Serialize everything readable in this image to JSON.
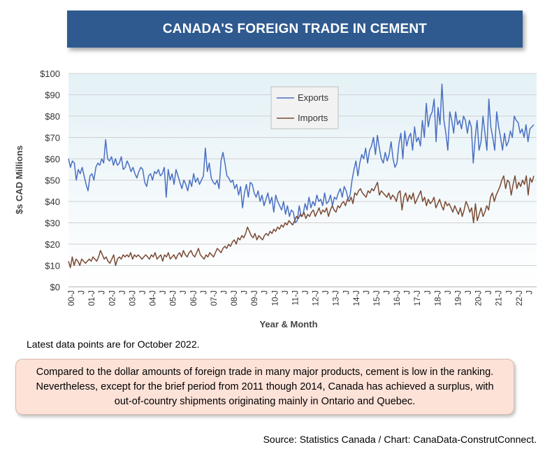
{
  "chart_data": {
    "type": "line",
    "title": "CANADA'S FOREIGN TRADE IN CEMENT",
    "xlabel": "Year & Month",
    "ylabel": "$s CAD Millions",
    "ylim": [
      0,
      100
    ],
    "yticks": [
      "$0",
      "$10",
      "$20",
      "$30",
      "$40",
      "$50",
      "$60",
      "$70",
      "$80",
      "$90",
      "$100"
    ],
    "xticks": [
      "00-J",
      "J",
      "01-J",
      "J",
      "02-J",
      "J",
      "03-J",
      "J",
      "04-J",
      "J",
      "05-J",
      "J",
      "06-J",
      "J",
      "07-J",
      "J",
      "08-J",
      "J",
      "09-J",
      "J",
      "10-J",
      "J",
      "11-J",
      "J",
      "12-J",
      "J",
      "13-J",
      "J",
      "14-J",
      "J",
      "15-J",
      "J",
      "16-J",
      "J",
      "17-J",
      "J",
      "18-J",
      "J",
      "19-J",
      "J",
      "20-J",
      "J",
      "21-J",
      "J",
      "22-J",
      "J"
    ],
    "x_start": "2000-01",
    "x_end": "2022-10",
    "legend": {
      "position": "top-center"
    },
    "series": [
      {
        "name": "Exports",
        "color": "#4a6fc2",
        "values": [
          60,
          56,
          59,
          58,
          50,
          55,
          53,
          56,
          52,
          48,
          45,
          52,
          53,
          50,
          56,
          58,
          57,
          60,
          58,
          69,
          60,
          59,
          61,
          57,
          60,
          57,
          58,
          61,
          55,
          56,
          59,
          57,
          54,
          56,
          53,
          51,
          54,
          56,
          55,
          49,
          47,
          52,
          53,
          50,
          54,
          53,
          55,
          52,
          53,
          56,
          42,
          55,
          50,
          53,
          48,
          55,
          52,
          49,
          46,
          50,
          48,
          45,
          50,
          47,
          53,
          49,
          51,
          48,
          50,
          52,
          65,
          54,
          58,
          51,
          49,
          48,
          50,
          46,
          59,
          63,
          58,
          52,
          51,
          49,
          50,
          46,
          48,
          43,
          47,
          37,
          44,
          48,
          42,
          49,
          48,
          44,
          42,
          45,
          40,
          43,
          38,
          41,
          44,
          39,
          42,
          35,
          43,
          40,
          38,
          36,
          40,
          34,
          38,
          33,
          36,
          35,
          30,
          31,
          38,
          33,
          34,
          39,
          36,
          42,
          37,
          40,
          38,
          43,
          40,
          41,
          38,
          44,
          39,
          40,
          43,
          38,
          42,
          41,
          44,
          46,
          42,
          47,
          45,
          41,
          43,
          50,
          55,
          59,
          52,
          58,
          62,
          60,
          65,
          58,
          64,
          66,
          70,
          62,
          71,
          65,
          60,
          58,
          63,
          59,
          62,
          68,
          60,
          56,
          58,
          67,
          72,
          60,
          73,
          66,
          70,
          72,
          64,
          75,
          68,
          70,
          66,
          78,
          70,
          86,
          75,
          80,
          82,
          88,
          68,
          84,
          76,
          95,
          78,
          72,
          64,
          82,
          78,
          72,
          82,
          76,
          78,
          74,
          80,
          78,
          72,
          78,
          75,
          58,
          70,
          78,
          64,
          68,
          80,
          72,
          64,
          88,
          75,
          70,
          64,
          82,
          75,
          70,
          64,
          72,
          66,
          68,
          73,
          70,
          80,
          78,
          77,
          72,
          74,
          70,
          76,
          68,
          74,
          75,
          76
        ]
      },
      {
        "name": "Imports",
        "color": "#7a4a34",
        "values": [
          12,
          9,
          14,
          10,
          13,
          12,
          10,
          13,
          12,
          11,
          12,
          13,
          12,
          14,
          13,
          12,
          14,
          17,
          15,
          13,
          14,
          12,
          11,
          13,
          15,
          10,
          13,
          14,
          13,
          15,
          14,
          15,
          14,
          16,
          13,
          15,
          14,
          15,
          14,
          13,
          14,
          15,
          14,
          13,
          15,
          14,
          16,
          13,
          14,
          15,
          12,
          15,
          14,
          16,
          13,
          14,
          15,
          13,
          15,
          16,
          14,
          17,
          15,
          14,
          16,
          17,
          15,
          14,
          16,
          18,
          15,
          14,
          13,
          15,
          14,
          16,
          15,
          14,
          16,
          18,
          17,
          16,
          18,
          19,
          18,
          20,
          19,
          21,
          22,
          20,
          23,
          22,
          24,
          23,
          25,
          28,
          26,
          24,
          23,
          25,
          22,
          24,
          23,
          22,
          24,
          25,
          24,
          26,
          25,
          27,
          26,
          28,
          27,
          29,
          28,
          30,
          29,
          31,
          30,
          29,
          31,
          33,
          32,
          34,
          33,
          35,
          32,
          34,
          33,
          35,
          36,
          33,
          35,
          37,
          34,
          36,
          35,
          37,
          33,
          36,
          38,
          36,
          35,
          38,
          37,
          39,
          40,
          38,
          41,
          40,
          42,
          39,
          44,
          43,
          45,
          46,
          44,
          43,
          42,
          45,
          44,
          46,
          45,
          47,
          49,
          43,
          45,
          44,
          43,
          42,
          44,
          41,
          43,
          42,
          40,
          44,
          45,
          36,
          42,
          44,
          40,
          43,
          41,
          44,
          39,
          41,
          43,
          45,
          40,
          42,
          38,
          41,
          39,
          40,
          42,
          37,
          39,
          41,
          38,
          36,
          40,
          38,
          39,
          37,
          35,
          38,
          36,
          34,
          37,
          33,
          36,
          40,
          38,
          35,
          37,
          30,
          39,
          31,
          34,
          37,
          33,
          35,
          38,
          36,
          42,
          44,
          40,
          43,
          45,
          47,
          50,
          52,
          46,
          50,
          49,
          43,
          48,
          52,
          46,
          49,
          47,
          50,
          48,
          52,
          43,
          51,
          49,
          52
        ]
      }
    ]
  },
  "note": "Latest data points are for October 2022.",
  "callout": "Compared to the dollar amounts of foreign trade in many major products, cement is low in the ranking. Nevertheless, except for the brief period from 2011 though 2014, Canada has achieved a surplus, with out-of-country shipments originating mainly in Ontario and Quebec.",
  "source": "Source: Statistics Canada / Chart: CanaData-ConstrutConnect."
}
